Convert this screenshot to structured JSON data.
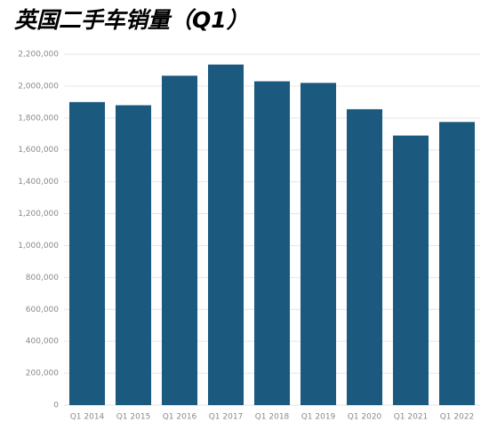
{
  "chart_data": {
    "type": "bar",
    "title": "英国二手车销量（Q1）",
    "categories": [
      "Q1 2014",
      "Q1 2015",
      "Q1 2016",
      "Q1 2017",
      "Q1 2018",
      "Q1 2019",
      "Q1 2020",
      "Q1 2021",
      "Q1 2022"
    ],
    "values": [
      1900000,
      1880000,
      2065000,
      2135000,
      2030000,
      2020000,
      1855000,
      1690000,
      1775000
    ],
    "color": "#1b5a7e",
    "ylim": [
      0,
      2200000
    ],
    "yticks": [
      0,
      {
        "value": 200000,
        "label": "200,000"
      },
      {
        "value": 400000,
        "label": "400,000"
      },
      {
        "value": 600000,
        "label": "600,000"
      },
      {
        "value": 800000,
        "label": "800,000"
      },
      {
        "value": 1000000,
        "label": "1,000,000"
      },
      {
        "value": 1200000,
        "label": "1,200,000"
      },
      {
        "value": 1400000,
        "label": "1,400,000"
      },
      {
        "value": 1600000,
        "label": "1,600,000"
      },
      {
        "value": 1800000,
        "label": "1,800,000"
      },
      {
        "value": 2000000,
        "label": "2,000,000"
      },
      {
        "value": 2200000,
        "label": "2,200,000"
      }
    ],
    "grid": true
  }
}
